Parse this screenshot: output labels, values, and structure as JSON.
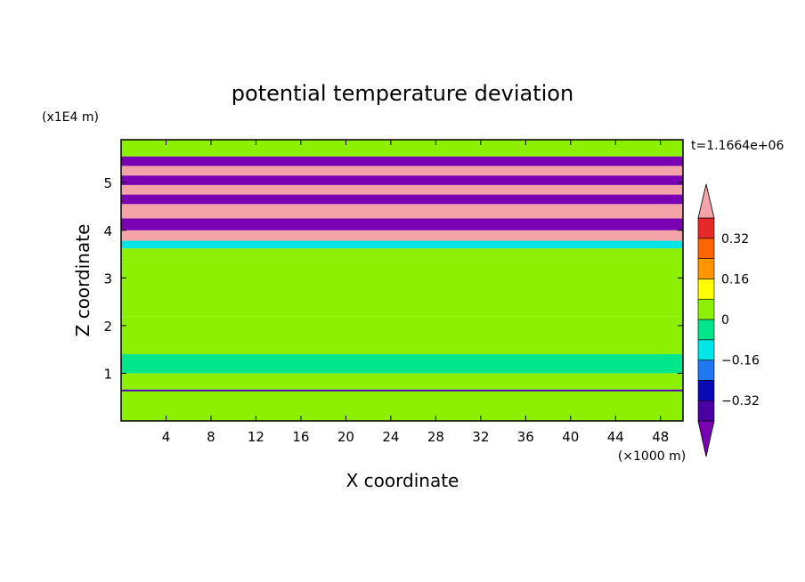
{
  "chart_data": {
    "type": "heatmap",
    "title": "potential temperature deviation",
    "xlabel": "X coordinate",
    "ylabel": "Z coordinate",
    "x_unit": "(×1000 m)",
    "y_unit": "(x1E4 m)",
    "time_label": "t=1.1664e+06",
    "xlim": [
      0,
      50
    ],
    "ylim": [
      0,
      5.9
    ],
    "x_ticks": [
      4,
      8,
      12,
      16,
      20,
      24,
      28,
      32,
      36,
      40,
      44,
      48
    ],
    "y_ticks": [
      1,
      2,
      3,
      4,
      5
    ],
    "colorbar": {
      "levels": [
        -0.4,
        -0.32,
        -0.24,
        -0.16,
        -0.08,
        0,
        0.08,
        0.16,
        0.24,
        0.32,
        0.4
      ],
      "labels": [
        "0.32",
        "0.16",
        "0",
        "−0.16",
        "−0.32"
      ],
      "label_values": [
        0.32,
        0.16,
        0,
        -0.16,
        -0.32
      ],
      "colors": [
        "#7a00b4",
        "#4a00a0",
        "#0a0ab4",
        "#1e78f0",
        "#00e6e6",
        "#00e68c",
        "#8cf000",
        "#ffff00",
        "#ff9600",
        "#ff6400",
        "#e62828",
        "#f4a3a8"
      ],
      "extend": "both"
    },
    "bands": [
      {
        "z": [
          0,
          0.62
        ],
        "value": 0.02
      },
      {
        "z": [
          0.62,
          0.66
        ],
        "value": -0.36
      },
      {
        "z": [
          0.66,
          1.0
        ],
        "value": 0.03
      },
      {
        "z": [
          1.0,
          1.4
        ],
        "value": -0.01
      },
      {
        "z": [
          1.4,
          2.2
        ],
        "value": 0.05
      },
      {
        "z": [
          2.2,
          3.4
        ],
        "value": 0.04
      },
      {
        "z": [
          3.4,
          3.62
        ],
        "value": 0.06
      },
      {
        "z": [
          3.62,
          3.78
        ],
        "value": -0.1
      },
      {
        "z": [
          3.78,
          4.0
        ],
        "value": 0.42
      },
      {
        "z": [
          4.0,
          4.25
        ],
        "value": -0.42
      },
      {
        "z": [
          4.25,
          4.55
        ],
        "value": 0.42
      },
      {
        "z": [
          4.55,
          4.75
        ],
        "value": -0.42
      },
      {
        "z": [
          4.75,
          4.95
        ],
        "value": 0.42
      },
      {
        "z": [
          4.95,
          5.15
        ],
        "value": -0.42
      },
      {
        "z": [
          5.15,
          5.35
        ],
        "value": 0.42
      },
      {
        "z": [
          5.35,
          5.55
        ],
        "value": -0.42
      },
      {
        "z": [
          5.55,
          5.9
        ],
        "value": 0.03
      }
    ]
  }
}
